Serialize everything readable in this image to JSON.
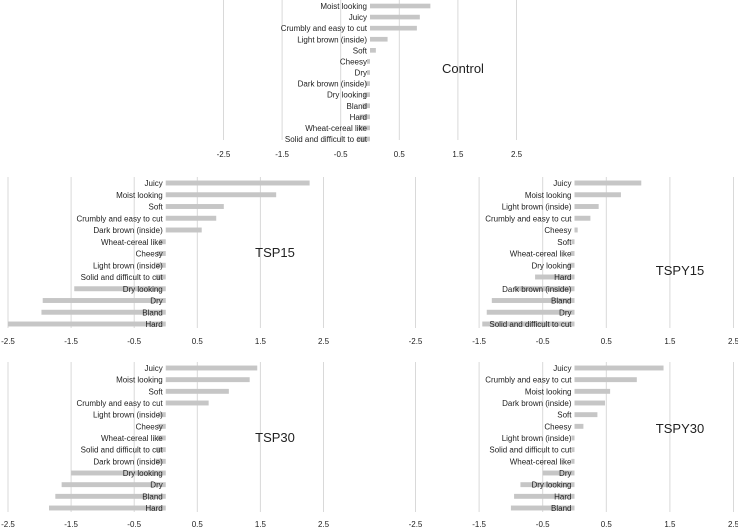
{
  "colors": {
    "bar": "#c6c6c6",
    "grid": "#d9d9d9",
    "text": "#222222"
  },
  "chart_data": [
    {
      "type": "bar",
      "orientation": "horizontal",
      "title": "Control",
      "xticks": [
        -2.5,
        -1.5,
        -0.5,
        0.5,
        1.5,
        2.5
      ],
      "xtick_labels": [
        "-2.5",
        "-1.5",
        "-0.5",
        "0.5",
        "1.5",
        "2.5"
      ],
      "xlim": [
        -2.5,
        2.5
      ],
      "grid": "vertical",
      "categories": [
        "Moist looking",
        "Juicy",
        "Crumbly and easy to cut",
        "Light brown (inside)",
        "Soft",
        "Cheesy",
        "Dry",
        "Dark brown (inside)",
        "Dry looking",
        "Bland",
        "Hard",
        "Wheat-cereal like",
        "Solid and difficult to cut"
      ],
      "values": [
        1.03,
        0.85,
        0.8,
        0.3,
        0.1,
        -0.02,
        -0.05,
        -0.08,
        -0.1,
        -0.13,
        -0.18,
        -0.2,
        -0.22
      ]
    },
    {
      "type": "bar",
      "orientation": "horizontal",
      "title": "TSP15",
      "xticks": [
        -2.5,
        -1.5,
        -0.5,
        0.5,
        1.5,
        2.5
      ],
      "xtick_labels": [
        "-2.5",
        "-1.5",
        "-0.5",
        "0.5",
        "1.5",
        "2.5"
      ],
      "xlim": [
        -2.5,
        2.5
      ],
      "grid": "vertical",
      "categories": [
        "Juicy",
        "Moist looking",
        "Soft",
        "Crumbly and easy to cut",
        "Dark brown (inside)",
        "Wheat-cereal like",
        "Cheesy",
        "Light brown (inside)",
        "Solid and difficult to cut",
        "Dry looking",
        "Dry",
        "Bland",
        "Hard"
      ],
      "values": [
        2.28,
        1.75,
        0.92,
        0.8,
        0.57,
        -0.1,
        -0.14,
        -0.15,
        -0.16,
        -1.45,
        -1.95,
        -1.97,
        -2.5
      ]
    },
    {
      "type": "bar",
      "orientation": "horizontal",
      "title": "TSPY15",
      "xticks": [
        -2.5,
        -1.5,
        -0.5,
        0.5,
        1.5,
        2.5
      ],
      "xtick_labels": [
        "-2.5",
        "-1.5",
        "-0.5",
        "0.5",
        "1.5",
        "2.5"
      ],
      "xlim": [
        -2.5,
        2.5
      ],
      "grid": "vertical",
      "categories": [
        "Juicy",
        "Moist looking",
        "Light brown (inside)",
        "Crumbly and easy to cut",
        "Cheesy",
        "Soft",
        "Wheat-cereal like",
        "Dry looking",
        "Hard",
        "Dark brown (inside)",
        "Bland",
        "Dry",
        "Solid and difficult to cut"
      ],
      "values": [
        1.05,
        0.73,
        0.38,
        0.25,
        0.05,
        -0.04,
        -0.06,
        -0.1,
        -0.62,
        -0.95,
        -1.3,
        -1.38,
        -1.45
      ]
    },
    {
      "type": "bar",
      "orientation": "horizontal",
      "title": "TSP30",
      "xticks": [
        -2.5,
        -1.5,
        -0.5,
        0.5,
        1.5,
        2.5
      ],
      "xtick_labels": [
        "-2.5",
        "-1.5",
        "-0.5",
        "0.5",
        "1.5",
        "2.5"
      ],
      "xlim": [
        -2.5,
        2.5
      ],
      "grid": "vertical",
      "categories": [
        "Juicy",
        "Moist looking",
        "Soft",
        "Crumbly and easy to cut",
        "Light brown (inside)",
        "Cheesy",
        "Wheat-cereal like",
        "Solid and difficult to cut",
        "Dark brown (inside)",
        "Dry looking",
        "Dry",
        "Bland",
        "Hard"
      ],
      "values": [
        1.45,
        1.33,
        1.0,
        0.68,
        -0.12,
        -0.13,
        -0.14,
        -0.15,
        -0.16,
        -1.5,
        -1.65,
        -1.75,
        -1.85
      ]
    },
    {
      "type": "bar",
      "orientation": "horizontal",
      "title": "TSPY30",
      "xticks": [
        -2.5,
        -1.5,
        -0.5,
        0.5,
        1.5,
        2.5
      ],
      "xtick_labels": [
        "-2.5",
        "-1.5",
        "-0.5",
        "0.5",
        "1.5",
        "2.5"
      ],
      "xlim": [
        -2.5,
        2.5
      ],
      "grid": "vertical",
      "categories": [
        "Juicy",
        "Crumbly and easy to cut",
        "Moist looking",
        "Dark brown (inside)",
        "Soft",
        "Cheesy",
        "Light brown (inside)",
        "Solid and difficult to cut",
        "Wheat-cereal like",
        "Dry",
        "Dry looking",
        "Hard",
        "Bland"
      ],
      "values": [
        1.4,
        0.98,
        0.56,
        0.48,
        0.36,
        0.14,
        -0.02,
        -0.04,
        -0.05,
        -0.5,
        -0.85,
        -0.95,
        -1.0
      ]
    }
  ]
}
